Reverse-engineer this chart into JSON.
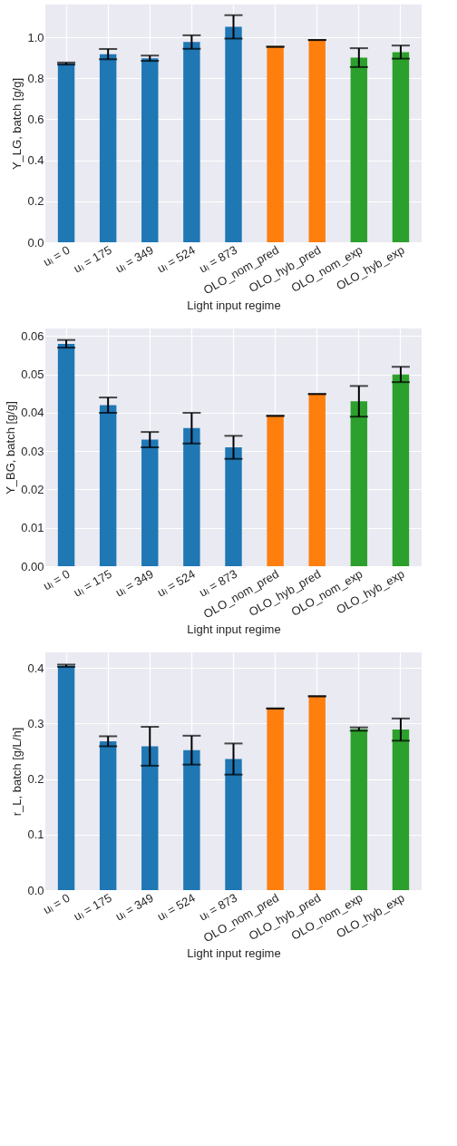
{
  "chart_data": [
    {
      "type": "bar",
      "categories": [
        "uₗ = 0",
        "uₗ = 175",
        "uₗ = 349",
        "uₗ = 524",
        "uₗ = 873",
        "OLO_nom_pred",
        "OLO_hyb_pred",
        "OLO_nom_exp",
        "OLO_hyb_exp"
      ],
      "values": [
        0.872,
        0.918,
        0.898,
        0.977,
        1.051,
        0.954,
        0.987,
        0.901,
        0.928
      ],
      "errors": [
        0.005,
        0.025,
        0.013,
        0.033,
        0.057,
        0,
        0,
        0.046,
        0.032
      ],
      "colors": [
        "#1f77b4",
        "#1f77b4",
        "#1f77b4",
        "#1f77b4",
        "#1f77b4",
        "#ff7f0e",
        "#ff7f0e",
        "#2ca02c",
        "#2ca02c"
      ],
      "xlabel": "Light input regime",
      "ylabel": "Y_LG, batch [g/g]",
      "ylim": [
        0,
        1.16
      ],
      "yticks": [
        {
          "value": 0,
          "label": "0.0"
        },
        {
          "value": 0.2,
          "label": "0.2"
        },
        {
          "value": 0.4,
          "label": "0.4"
        },
        {
          "value": 0.6,
          "label": "0.6"
        },
        {
          "value": 0.8,
          "label": "0.8"
        },
        {
          "value": 1,
          "label": "1.0"
        }
      ],
      "grid": true
    },
    {
      "type": "bar",
      "categories": [
        "uₗ = 0",
        "uₗ = 175",
        "uₗ = 349",
        "uₗ = 524",
        "uₗ = 873",
        "OLO_nom_pred",
        "OLO_hyb_pred",
        "OLO_nom_exp",
        "OLO_hyb_exp"
      ],
      "values": [
        0.058,
        0.042,
        0.033,
        0.036,
        0.031,
        0.0392,
        0.0449,
        0.043,
        0.05
      ],
      "errors": [
        0.001,
        0.002,
        0.002,
        0.004,
        0.003,
        0,
        0,
        0.004,
        0.002
      ],
      "colors": [
        "#1f77b4",
        "#1f77b4",
        "#1f77b4",
        "#1f77b4",
        "#1f77b4",
        "#ff7f0e",
        "#ff7f0e",
        "#2ca02c",
        "#2ca02c"
      ],
      "xlabel": "Light input regime",
      "ylabel": "Y_BG, batch [g/g]",
      "ylim": [
        0,
        0.062
      ],
      "yticks": [
        {
          "value": 0,
          "label": "0.00"
        },
        {
          "value": 0.01,
          "label": "0.01"
        },
        {
          "value": 0.02,
          "label": "0.02"
        },
        {
          "value": 0.03,
          "label": "0.03"
        },
        {
          "value": 0.04,
          "label": "0.04"
        },
        {
          "value": 0.05,
          "label": "0.05"
        },
        {
          "value": 0.06,
          "label": "0.06"
        }
      ],
      "grid": true
    },
    {
      "type": "bar",
      "categories": [
        "uₗ = 0",
        "uₗ = 175",
        "uₗ = 349",
        "uₗ = 524",
        "uₗ = 873",
        "OLO_nom_pred",
        "OLO_hyb_pred",
        "OLO_nom_exp",
        "OLO_hyb_exp"
      ],
      "values": [
        0.404,
        0.268,
        0.259,
        0.252,
        0.236,
        0.327,
        0.349,
        0.29,
        0.289
      ],
      "errors": [
        0.002,
        0.009,
        0.035,
        0.026,
        0.028,
        0,
        0,
        0.003,
        0.02
      ],
      "colors": [
        "#1f77b4",
        "#1f77b4",
        "#1f77b4",
        "#1f77b4",
        "#1f77b4",
        "#ff7f0e",
        "#ff7f0e",
        "#2ca02c",
        "#2ca02c"
      ],
      "xlabel": "Light input regime",
      "ylabel": "r_L, batch [g/L/h]",
      "ylim": [
        0,
        0.428
      ],
      "yticks": [
        {
          "value": 0,
          "label": "0.0"
        },
        {
          "value": 0.1,
          "label": "0.1"
        },
        {
          "value": 0.2,
          "label": "0.2"
        },
        {
          "value": 0.3,
          "label": "0.3"
        },
        {
          "value": 0.4,
          "label": "0.4"
        }
      ],
      "grid": true
    }
  ]
}
